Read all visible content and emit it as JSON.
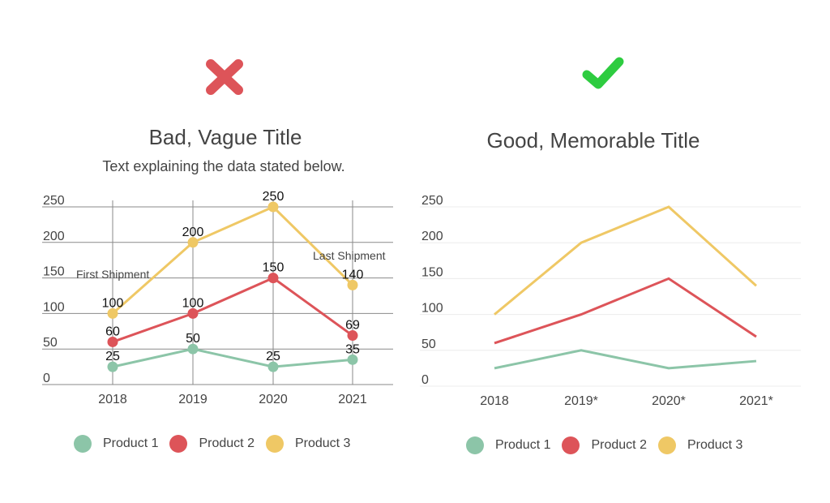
{
  "colors": {
    "product1": "#8cc5a8",
    "product2": "#dd5459",
    "product3": "#efc865",
    "bad_icon": "#dd5459",
    "good_icon": "#2ecc40",
    "text": "#444444",
    "grid_bad": "#888888",
    "grid_good": "#eeeeee"
  },
  "bad": {
    "icon": "x-mark-icon",
    "title": "Bad, Vague Title",
    "subtitle": "Text explaining the data stated below.",
    "annotation_first": "First Shipment",
    "annotation_last": "Last Shipment",
    "legend": [
      "Product 1",
      "Product 2",
      "Product 3"
    ]
  },
  "good": {
    "icon": "check-mark-icon",
    "title": "Good, Memorable Title",
    "legend": [
      "Product 1",
      "Product 2",
      "Product 3"
    ]
  },
  "chart_data": [
    {
      "type": "line",
      "title": "Bad, Vague Title",
      "subtitle": "Text explaining the data stated below.",
      "categories": [
        "2018",
        "2019",
        "2020",
        "2021"
      ],
      "series": [
        {
          "name": "Product 1",
          "values": [
            25,
            50,
            25,
            35
          ]
        },
        {
          "name": "Product 2",
          "values": [
            60,
            100,
            150,
            69
          ]
        },
        {
          "name": "Product 3",
          "values": [
            100,
            200,
            250,
            140
          ]
        }
      ],
      "yticks": [
        0,
        50,
        100,
        150,
        200,
        250
      ],
      "ylim": [
        0,
        250
      ],
      "xlabel": "",
      "ylabel": "",
      "grid": true,
      "data_labels": true,
      "markers": true,
      "annotations": [
        "First Shipment",
        "Last Shipment"
      ],
      "legend_position": "bottom"
    },
    {
      "type": "line",
      "title": "Good, Memorable Title",
      "categories": [
        "2018",
        "2019*",
        "2020*",
        "2021*"
      ],
      "series": [
        {
          "name": "Product 1",
          "values": [
            25,
            50,
            25,
            35
          ]
        },
        {
          "name": "Product 2",
          "values": [
            60,
            100,
            150,
            69
          ]
        },
        {
          "name": "Product 3",
          "values": [
            100,
            200,
            250,
            140
          ]
        }
      ],
      "yticks": [
        0,
        50,
        100,
        150,
        200,
        250
      ],
      "ylim": [
        0,
        250
      ],
      "xlabel": "",
      "ylabel": "",
      "grid": "horizontal-light",
      "data_labels": false,
      "markers": false,
      "legend_position": "bottom"
    }
  ]
}
